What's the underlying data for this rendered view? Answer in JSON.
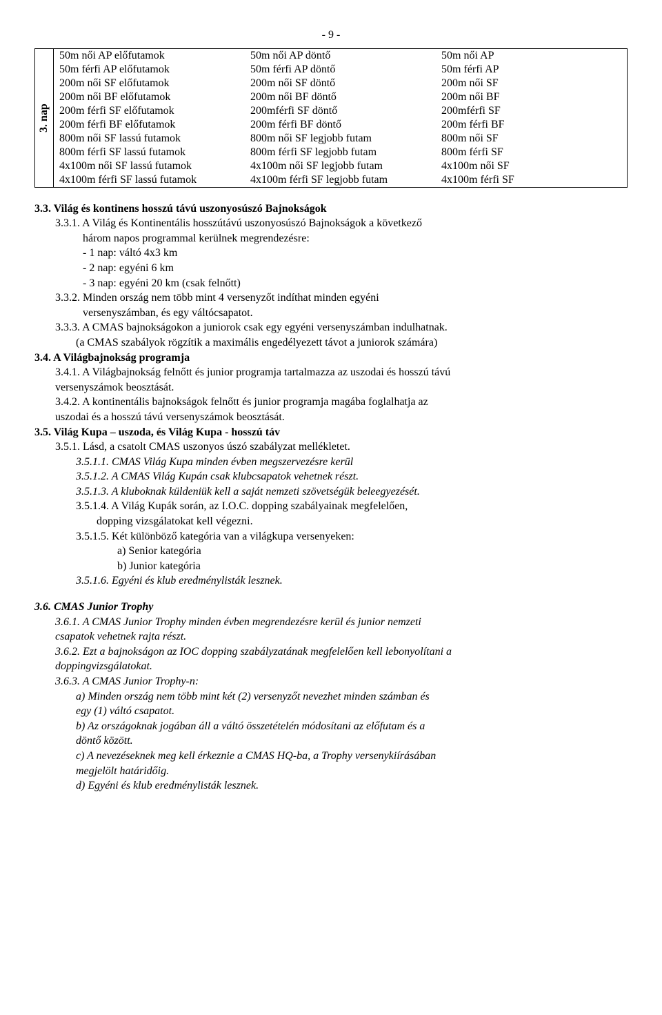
{
  "page_number": "- 9 -",
  "table": {
    "vertical_label": "3. nap",
    "rows": [
      [
        "50m női AP előfutamok",
        "50m női AP döntő",
        "50m női AP"
      ],
      [
        "50m férfi AP előfutamok",
        "50m férfi AP döntő",
        "50m férfi AP"
      ],
      [
        "200m női SF előfutamok",
        "200m női SF döntő",
        "200m női SF"
      ],
      [
        "200m női BF előfutamok",
        "200m női BF döntő",
        "200m női BF"
      ],
      [
        "200m férfi SF előfutamok",
        "200mférfi SF döntő",
        "200mférfi SF"
      ],
      [
        "200m férfi BF előfutamok",
        "200m férfi BF döntő",
        "200m férfi BF"
      ],
      [
        "800m női SF lassú futamok",
        "800m női SF legjobb futam",
        "800m női SF"
      ],
      [
        "800m férfi SF lassú futamok",
        "800m férfi SF legjobb futam",
        "800m férfi SF"
      ],
      [
        "4x100m női SF lassú futamok",
        "4x100m női SF legjobb futam",
        "4x100m női SF"
      ],
      [
        "4x100m férfi SF lassú futamok",
        "4x100m férfi SF legjobb futam",
        "4x100m férfi SF"
      ]
    ]
  },
  "body": {
    "s3_3": "3.3. Világ és kontinens hosszú távú uszonyosúszó Bajnokságok",
    "s3_3_1_a": "3.3.1. A Világ és Kontinentális hosszútávú uszonyosúszó Bajnokságok a következő",
    "s3_3_1_b": "három napos programmal kerülnek megrendezésre:",
    "s3_3_1_l1": "- 1 nap: váltó 4x3 km",
    "s3_3_1_l2": "- 2 nap: egyéni 6 km",
    "s3_3_1_l3": "- 3 nap: egyéni 20 km (csak felnőtt)",
    "s3_3_2_a": "3.3.2. Minden ország nem több mint 4 versenyzőt indíthat minden egyéni",
    "s3_3_2_b": "versenyszámban, és egy váltócsapatot.",
    "s3_3_3_a": "3.3.3. A CMAS bajnokságokon a juniorok csak egy egyéni versenyszámban indulhatnak.",
    "s3_3_3_b": "(a CMAS szabályok rögzítik a maximális engedélyezett távot a juniorok számára)",
    "s3_4": "3.4. A Világbajnokság programja",
    "s3_4_1_a": "3.4.1. A Világbajnokság felnőtt és junior programja tartalmazza az uszodai és hosszú távú",
    "s3_4_1_b": "versenyszámok  beosztását.",
    "s3_4_2_a": "3.4.2. A kontinentális bajnokságok felnőtt és junior programja magába foglalhatja az",
    "s3_4_2_b": "uszodai és a hosszú távú versenyszámok beosztását.",
    "s3_5": "3.5. Világ Kupa – uszoda, és Világ Kupa - hosszú táv",
    "s3_5_1": "3.5.1. Lásd, a csatolt CMAS uszonyos úszó szabályzat mellékletet.",
    "s3_5_1_1": "3.5.1.1. CMAS Világ Kupa minden évben megszervezésre kerül",
    "s3_5_1_2": "3.5.1.2. A CMAS Világ Kupán csak klubcsapatok vehetnek részt.",
    "s3_5_1_3": "3.5.1.3. A kluboknak küldeniük kell a saját nemzeti szövetségük beleegyezését.",
    "s3_5_1_4_a": "3.5.1.4. A Világ Kupák során, az  I.O.C.  dopping szabályainak megfelelően,",
    "s3_5_1_4_b": "dopping vizsgálatokat kell végezni.",
    "s3_5_1_5": "3.5.1.5. Két különböző kategória van a világkupa versenyeken:",
    "s3_5_1_5_a": "a)  Senior kategória",
    "s3_5_1_5_b": "b)  Junior kategória",
    "s3_5_1_6": "3.5.1.6. Egyéni és klub eredménylisták lesznek.",
    "s3_6": "3.6. CMAS Junior Trophy",
    "s3_6_1_a": "3.6.1.  A CMAS Junior Trophy minden évben megrendezésre kerül és junior nemzeti",
    "s3_6_1_b": " csapatok vehetnek rajta részt.",
    "s3_6_2_a": "3.6.2. Ezt a bajnokságon az IOC dopping szabályzatának megfelelően kell lebonyolítani a",
    "s3_6_2_b": "doppingvizsgálatokat.",
    "s3_6_3": "3.6.3. A CMAS Junior Trophy-n:",
    "s3_6_3_a1": "a) Minden ország nem több mint két (2) versenyzőt nevezhet minden számban és",
    "s3_6_3_a2": "egy (1) váltó csapatot.",
    "s3_6_3_b1": "b) Az országoknak jogában áll a váltó összetételén módosítani az előfutam és a",
    "s3_6_3_b2": "döntő között.",
    "s3_6_3_c1": "c) A nevezéseknek meg kell érkeznie a CMAS HQ-ba, a Trophy versenykiírásában",
    "s3_6_3_c2": "megjelölt határidőig.",
    "s3_6_3_d": "d) Egyéni és klub eredménylisták lesznek."
  }
}
